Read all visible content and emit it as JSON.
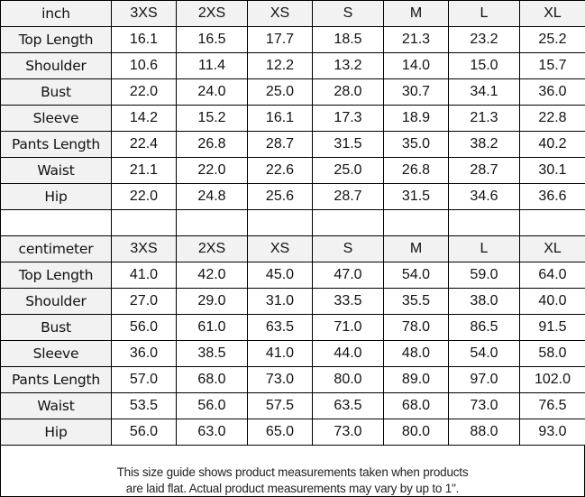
{
  "sizes": [
    "3XS",
    "2XS",
    "XS",
    "S",
    "M",
    "L",
    "XL"
  ],
  "tables": [
    {
      "unit": "inch",
      "rows": [
        {
          "label": "Top Length",
          "values": [
            "16.1",
            "16.5",
            "17.7",
            "18.5",
            "21.3",
            "23.2",
            "25.2"
          ]
        },
        {
          "label": "Shoulder",
          "values": [
            "10.6",
            "11.4",
            "12.2",
            "13.2",
            "14.0",
            "15.0",
            "15.7"
          ]
        },
        {
          "label": "Bust",
          "values": [
            "22.0",
            "24.0",
            "25.0",
            "28.0",
            "30.7",
            "34.1",
            "36.0"
          ]
        },
        {
          "label": "Sleeve",
          "values": [
            "14.2",
            "15.2",
            "16.1",
            "17.3",
            "18.9",
            "21.3",
            "22.8"
          ]
        },
        {
          "label": "Pants Length",
          "values": [
            "22.4",
            "26.8",
            "28.7",
            "31.5",
            "35.0",
            "38.2",
            "40.2"
          ]
        },
        {
          "label": "Waist",
          "values": [
            "21.1",
            "22.0",
            "22.6",
            "25.0",
            "26.8",
            "28.7",
            "30.1"
          ]
        },
        {
          "label": "Hip",
          "values": [
            "22.0",
            "24.8",
            "25.6",
            "28.7",
            "31.5",
            "34.6",
            "36.6"
          ]
        }
      ]
    },
    {
      "unit": "centimeter",
      "rows": [
        {
          "label": "Top Length",
          "values": [
            "41.0",
            "42.0",
            "45.0",
            "47.0",
            "54.0",
            "59.0",
            "64.0"
          ]
        },
        {
          "label": "Shoulder",
          "values": [
            "27.0",
            "29.0",
            "31.0",
            "33.5",
            "35.5",
            "38.0",
            "40.0"
          ]
        },
        {
          "label": "Bust",
          "values": [
            "56.0",
            "61.0",
            "63.5",
            "71.0",
            "78.0",
            "86.5",
            "91.5"
          ]
        },
        {
          "label": "Sleeve",
          "values": [
            "36.0",
            "38.5",
            "41.0",
            "44.0",
            "48.0",
            "54.0",
            "58.0"
          ]
        },
        {
          "label": "Pants Length",
          "values": [
            "57.0",
            "68.0",
            "73.0",
            "80.0",
            "89.0",
            "97.0",
            "102.0"
          ]
        },
        {
          "label": "Waist",
          "values": [
            "53.5",
            "56.0",
            "57.5",
            "63.5",
            "68.0",
            "73.0",
            "76.5"
          ]
        },
        {
          "label": "Hip",
          "values": [
            "56.0",
            "63.0",
            "65.0",
            "73.0",
            "80.0",
            "88.0",
            "93.0"
          ]
        }
      ]
    }
  ],
  "footer": {
    "line1": "This size guide shows product measurements taken when products",
    "line2": "are laid flat. Actual product measurements may vary by up to 1\"."
  },
  "colors": {
    "header_bg": "#f2f2f2",
    "border": "#000000"
  }
}
